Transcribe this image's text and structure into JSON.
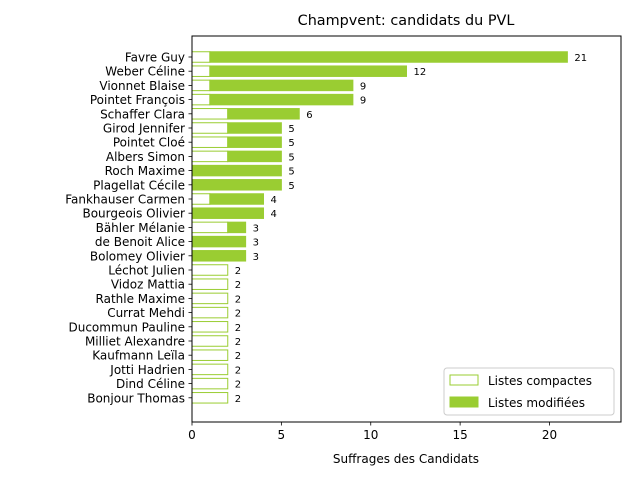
{
  "chart_data": {
    "type": "bar",
    "orientation": "horizontal",
    "stacked": true,
    "title": "Champvent: candidats du PVL",
    "xlabel": "Suffrages des Candidats",
    "ylabel": "",
    "xlim": [
      0,
      24
    ],
    "xticks": [
      0,
      5,
      10,
      15,
      20
    ],
    "grid": false,
    "legend_position": "bottom-right",
    "categories": [
      "Favre Guy",
      "Weber Céline",
      "Vionnet Blaise",
      "Pointet François",
      "Schaffer Clara",
      "Girod Jennifer",
      "Pointet Cloé",
      "Albers Simon",
      "Roch Maxime",
      "Plagellat Cécile",
      "Fankhauser Carmen",
      "Bourgeois Olivier",
      "Bähler Mélanie",
      "de Benoit Alice",
      "Bolomey Olivier",
      "Léchot Julien",
      "Vidoz Mattia",
      "Rathle Maxime",
      "Currat Mehdi",
      "Ducommun Pauline",
      "Milliet Alexandre",
      "Kaufmann Leïla",
      "Jotti Hadrien",
      "Dind Céline",
      "Bonjour Thomas"
    ],
    "series": [
      {
        "name": "Listes compactes",
        "color": "#9acd32",
        "style": "outline",
        "values": [
          1,
          1,
          1,
          1,
          2,
          2,
          2,
          2,
          0,
          0,
          1,
          0,
          2,
          0,
          0,
          2,
          2,
          2,
          2,
          2,
          2,
          2,
          2,
          2,
          2
        ]
      },
      {
        "name": "Listes modifiées",
        "color": "#9acd32",
        "style": "filled",
        "values": [
          20,
          11,
          8,
          8,
          4,
          3,
          3,
          3,
          5,
          5,
          3,
          4,
          1,
          3,
          3,
          0,
          0,
          0,
          0,
          0,
          0,
          0,
          0,
          0,
          0
        ]
      }
    ],
    "totals": [
      21,
      12,
      9,
      9,
      6,
      5,
      5,
      5,
      5,
      5,
      4,
      4,
      3,
      3,
      3,
      2,
      2,
      2,
      2,
      2,
      2,
      2,
      2,
      2,
      2
    ]
  }
}
